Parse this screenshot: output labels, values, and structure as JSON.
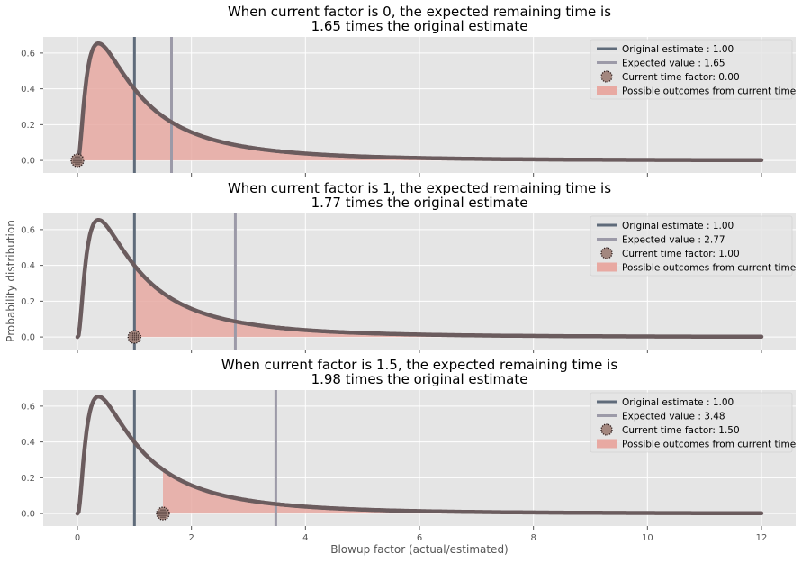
{
  "colors": {
    "panel_bg": "#e5e5e5",
    "grid": "#ffffff",
    "curve": "#6b5c5e",
    "original_line": "#5f6b7a",
    "expected_line": "#9c9aa8",
    "fill": "#e8a9a2",
    "marker_face": "#a3877f",
    "marker_dots": "#2b1b1b"
  },
  "xlabel": "Blowup factor (actual/estimated)",
  "ylabel": "Probability distribution",
  "chart_data": [
    {
      "type": "area",
      "title_line1": "When current factor is 0, the expected remaining time is",
      "title_line2": "1.65 times the original estimate",
      "xlim": [
        -0.6,
        12.6
      ],
      "ylim": [
        -0.07,
        0.69
      ],
      "xticks": [
        0,
        2,
        4,
        6,
        8,
        10,
        12
      ],
      "yticks": [
        0.0,
        0.2,
        0.4,
        0.6
      ],
      "ytick_labels": [
        "0.0",
        "0.2",
        "0.4",
        "0.6"
      ],
      "show_xtick_labels": false,
      "current_factor": 0.0,
      "original_estimate": 1.0,
      "expected_value": 1.65,
      "curve": {
        "peak_x": 0.37,
        "peak_y": 0.66,
        "x_max": 12
      },
      "legend": [
        "Original estimate : 1.00",
        "Expected value : 1.65",
        "Current time factor: 0.00",
        "Possible outcomes from current time"
      ],
      "legend_position": "upper right"
    },
    {
      "type": "area",
      "title_line1": "When current factor is 1, the expected remaining time is",
      "title_line2": "1.77 times the original estimate",
      "xlim": [
        -0.6,
        12.6
      ],
      "ylim": [
        -0.07,
        0.69
      ],
      "xticks": [
        0,
        2,
        4,
        6,
        8,
        10,
        12
      ],
      "yticks": [
        0.0,
        0.2,
        0.4,
        0.6
      ],
      "ytick_labels": [
        "0.0",
        "0.2",
        "0.4",
        "0.6"
      ],
      "show_xtick_labels": false,
      "current_factor": 1.0,
      "original_estimate": 1.0,
      "expected_value": 2.77,
      "curve": {
        "peak_x": 0.37,
        "peak_y": 0.66,
        "x_max": 12
      },
      "legend": [
        "Original estimate : 1.00",
        "Expected value : 2.77",
        "Current time factor: 1.00",
        "Possible outcomes from current time"
      ],
      "legend_position": "upper right"
    },
    {
      "type": "area",
      "title_line1": "When current factor is 1.5, the expected remaining time is",
      "title_line2": "1.98 times the original estimate",
      "xlim": [
        -0.6,
        12.6
      ],
      "ylim": [
        -0.07,
        0.69
      ],
      "xticks": [
        0,
        2,
        4,
        6,
        8,
        10,
        12
      ],
      "xtick_labels": [
        "0",
        "2",
        "4",
        "6",
        "8",
        "10",
        "12"
      ],
      "yticks": [
        0.0,
        0.2,
        0.4,
        0.6
      ],
      "ytick_labels": [
        "0.0",
        "0.2",
        "0.4",
        "0.6"
      ],
      "show_xtick_labels": true,
      "current_factor": 1.5,
      "original_estimate": 1.0,
      "expected_value": 3.48,
      "curve": {
        "peak_x": 0.37,
        "peak_y": 0.66,
        "x_max": 12
      },
      "legend": [
        "Original estimate : 1.00",
        "Expected value : 3.48",
        "Current time factor: 1.50",
        "Possible outcomes from current time"
      ],
      "legend_position": "upper right"
    }
  ]
}
